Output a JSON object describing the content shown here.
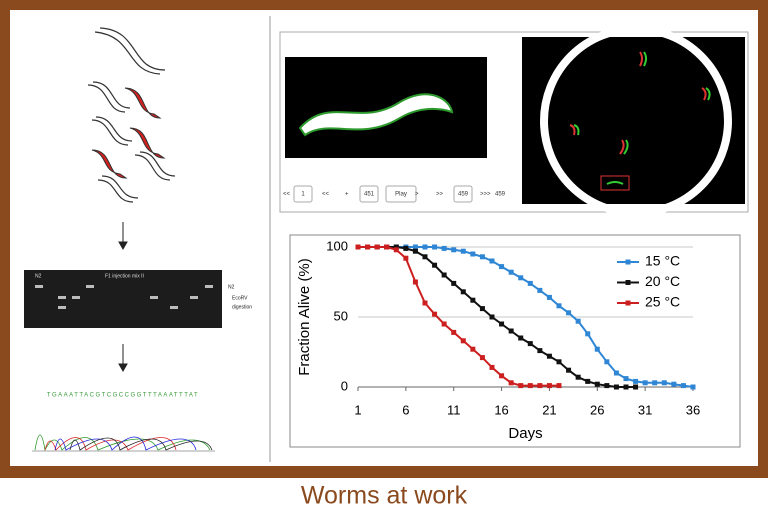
{
  "caption": "Worms at work",
  "gel": {
    "labels": [
      "N2",
      "F1 injection mix II",
      "N2",
      "EcoRV",
      "digestion"
    ]
  },
  "sequence": "TGAAATTACGTCGCCGGTTTAAATTTAT",
  "player": {
    "controls": [
      "<<",
      "1",
      "<<",
      "+",
      "451",
      "Play",
      ">",
      ">>",
      "459",
      ">>>",
      "459"
    ]
  },
  "chart_data": {
    "type": "line",
    "xlabel": "Days",
    "ylabel": "Fraction Alive (%)",
    "x": [
      1,
      2,
      3,
      4,
      5,
      6,
      7,
      8,
      9,
      10,
      11,
      12,
      13,
      14,
      15,
      16,
      17,
      18,
      19,
      20,
      21,
      22,
      23,
      24,
      25,
      26,
      27,
      28,
      29,
      30,
      31,
      32,
      33,
      34,
      35,
      36
    ],
    "xlim": [
      1,
      36
    ],
    "xticks": [
      1,
      6,
      11,
      16,
      21,
      26,
      31,
      36
    ],
    "ylim": [
      0,
      100
    ],
    "yticks": [
      0,
      50,
      100
    ],
    "grid": true,
    "legend": "upper right",
    "series": [
      {
        "name": "15 °C",
        "color": "#2e86d4",
        "values": [
          100,
          100,
          100,
          100,
          100,
          100,
          100,
          100,
          100,
          99,
          98,
          97,
          95,
          93,
          90,
          86,
          82,
          78,
          74,
          69,
          64,
          58,
          53,
          47,
          38,
          27,
          18,
          10,
          6,
          4,
          3,
          3,
          3,
          2,
          1,
          0
        ]
      },
      {
        "name": "20 °C",
        "color": "#111111",
        "values": [
          100,
          100,
          100,
          100,
          100,
          99,
          97,
          93,
          87,
          80,
          74,
          68,
          62,
          56,
          50,
          45,
          40,
          35,
          31,
          26,
          22,
          18,
          12,
          7,
          4,
          2,
          1,
          0,
          0,
          0,
          null,
          null,
          null,
          null,
          null,
          null
        ]
      },
      {
        "name": "25 °C",
        "color": "#cc1f1f",
        "values": [
          100,
          100,
          100,
          100,
          98,
          92,
          75,
          60,
          52,
          45,
          39,
          33,
          27,
          21,
          14,
          8,
          3,
          1,
          1,
          1,
          1,
          1,
          null,
          null,
          null,
          null,
          null,
          null,
          null,
          null,
          null,
          null,
          null,
          null,
          null,
          null
        ]
      }
    ]
  }
}
